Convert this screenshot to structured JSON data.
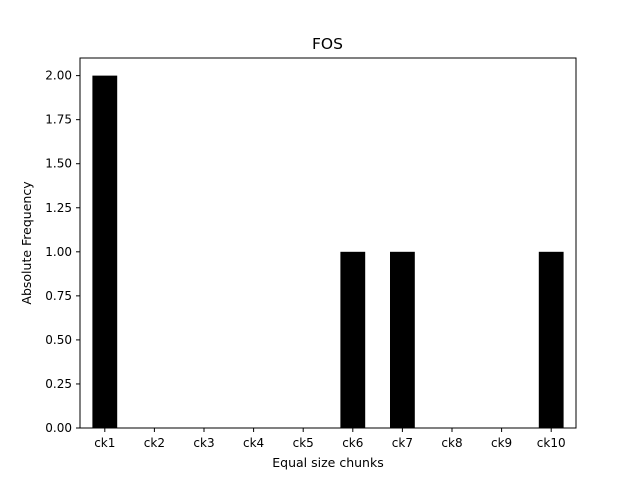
{
  "chart_data": {
    "type": "bar",
    "title": "FOS",
    "xlabel": "Equal size chunks",
    "ylabel": "Absolute Frequency",
    "categories": [
      "ck1",
      "ck2",
      "ck3",
      "ck4",
      "ck5",
      "ck6",
      "ck7",
      "ck8",
      "ck9",
      "ck10"
    ],
    "values": [
      2,
      0,
      0,
      0,
      0,
      1,
      1,
      0,
      0,
      1
    ],
    "ylim": [
      0,
      2.1
    ],
    "yticks": [
      "0.00",
      "0.25",
      "0.50",
      "0.75",
      "1.00",
      "1.25",
      "1.50",
      "1.75",
      "2.00"
    ],
    "bar_color": "#000000",
    "grid": false
  }
}
